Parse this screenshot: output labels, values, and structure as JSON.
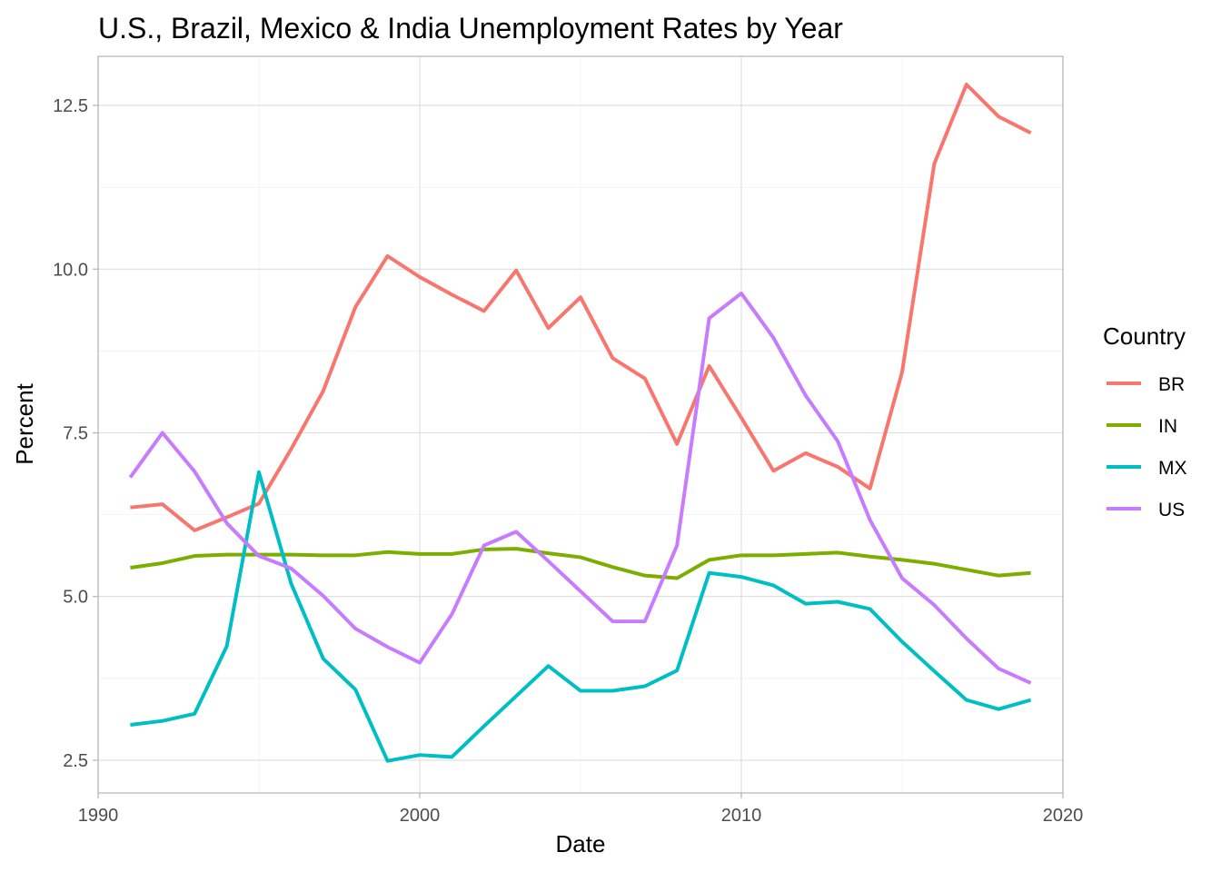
{
  "chart_data": {
    "type": "line",
    "title": "U.S., Brazil, Mexico & India Unemployment Rates by Year",
    "xlabel": "Date",
    "ylabel": "Percent",
    "xlim": [
      1990,
      2020
    ],
    "ylim": [
      2,
      13.25
    ],
    "x_ticks": [
      1990,
      2000,
      2010,
      2020
    ],
    "y_ticks": [
      2.5,
      5.0,
      7.5,
      10.0,
      12.5
    ],
    "x_tick_labels": [
      "1990",
      "2000",
      "2010",
      "2020"
    ],
    "y_tick_labels": [
      "2.5",
      "5.0",
      "7.5",
      "10.0",
      "12.5"
    ],
    "grid": true,
    "legend_title": "Country",
    "legend_position": "right",
    "x": [
      1991,
      1992,
      1993,
      1994,
      1995,
      1996,
      1997,
      1998,
      1999,
      2000,
      2001,
      2002,
      2003,
      2004,
      2005,
      2006,
      2007,
      2008,
      2009,
      2010,
      2011,
      2012,
      2013,
      2014,
      2015,
      2016,
      2017,
      2018,
      2019
    ],
    "series": [
      {
        "name": "BR",
        "color": "#F8766D",
        "values": [
          6.36,
          6.41,
          6.01,
          6.21,
          6.42,
          7.25,
          8.14,
          9.42,
          10.2,
          9.88,
          9.61,
          9.36,
          9.98,
          9.1,
          9.57,
          8.64,
          8.33,
          7.33,
          8.52,
          7.73,
          6.92,
          7.19,
          6.98,
          6.65,
          8.43,
          11.61,
          12.82,
          12.33,
          12.08
        ]
      },
      {
        "name": "IN",
        "color": "#7CAE00",
        "values": [
          5.44,
          5.51,
          5.62,
          5.64,
          5.64,
          5.64,
          5.63,
          5.63,
          5.68,
          5.65,
          5.65,
          5.72,
          5.73,
          5.66,
          5.6,
          5.45,
          5.32,
          5.28,
          5.56,
          5.63,
          5.63,
          5.65,
          5.67,
          5.61,
          5.56,
          5.5,
          5.41,
          5.32,
          5.36
        ]
      },
      {
        "name": "MX",
        "color": "#00BFC4",
        "values": [
          3.04,
          3.1,
          3.21,
          4.24,
          6.9,
          5.2,
          4.05,
          3.58,
          2.49,
          2.58,
          2.55,
          3.02,
          3.48,
          3.94,
          3.56,
          3.56,
          3.63,
          3.87,
          5.36,
          5.3,
          5.17,
          4.89,
          4.92,
          4.81,
          4.31,
          3.86,
          3.42,
          3.28,
          3.42
        ]
      },
      {
        "name": "US",
        "color": "#C77CFF",
        "values": [
          6.82,
          7.5,
          6.91,
          6.12,
          5.62,
          5.43,
          5.01,
          4.51,
          4.23,
          3.99,
          4.73,
          5.78,
          5.99,
          5.54,
          5.08,
          4.62,
          4.62,
          5.78,
          9.25,
          9.63,
          8.95,
          8.07,
          7.37,
          6.17,
          5.28,
          4.87,
          4.36,
          3.9,
          3.68
        ]
      }
    ]
  }
}
